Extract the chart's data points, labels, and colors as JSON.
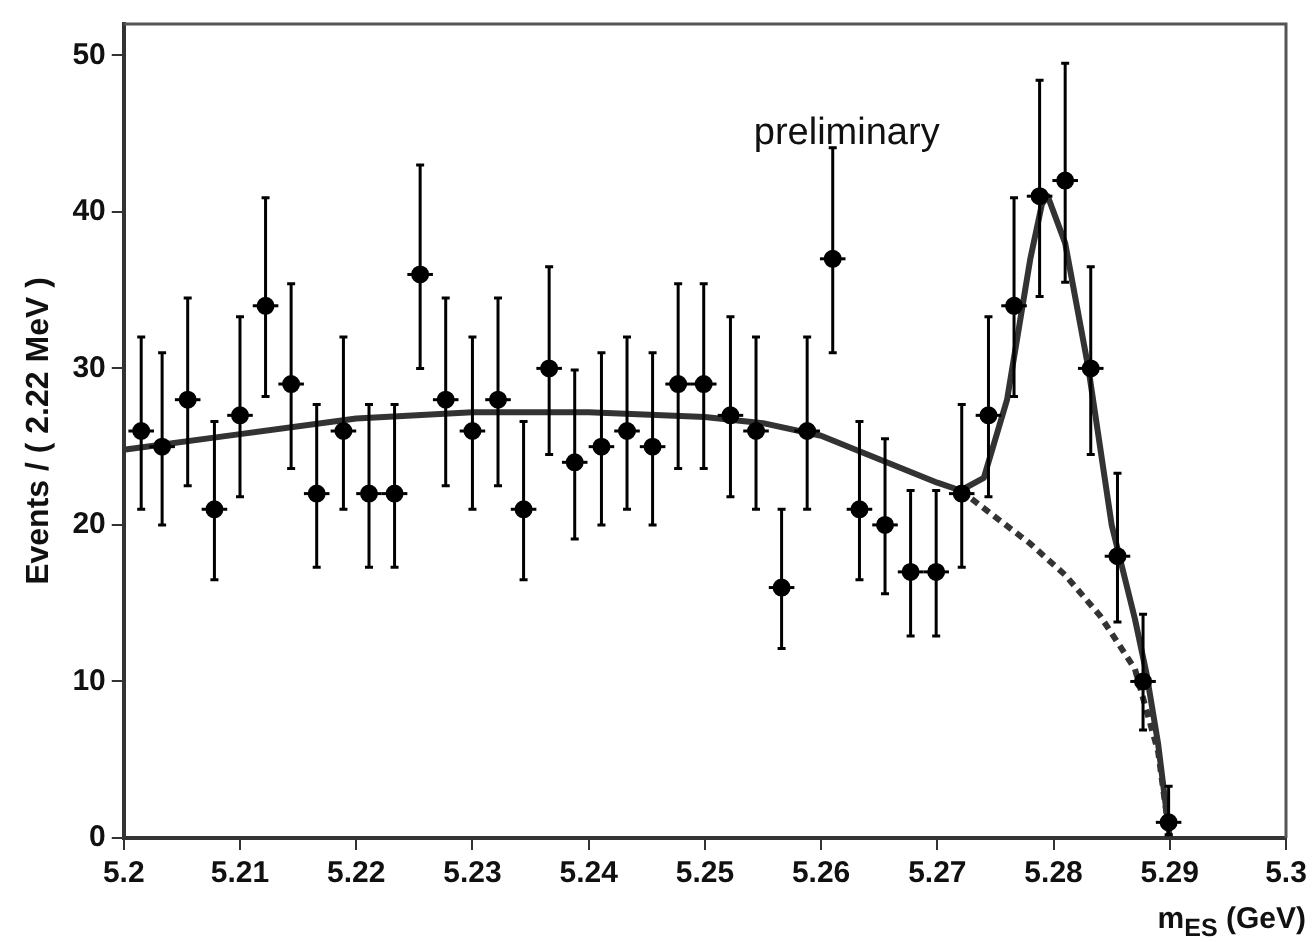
{
  "chart_data": {
    "type": "scatter",
    "xlabel": "m$_{ES}$ (GeV)",
    "ylabel": "Events / ( 2.22 MeV )",
    "annotations": [
      "preliminary"
    ],
    "xlim": [
      5.2,
      5.3
    ],
    "xticks": [
      5.2,
      5.21,
      5.22,
      5.23,
      5.24,
      5.25,
      5.26,
      5.27,
      5.28,
      5.29,
      5.3
    ],
    "ylim": [
      0,
      52
    ],
    "yticks": [
      0,
      10,
      20,
      30,
      40,
      50
    ],
    "grid": false,
    "legend": false,
    "series": [
      {
        "marker": "circle",
        "color": "#000000",
        "x": [
          5.2015,
          5.2033,
          5.2055,
          5.2078,
          5.21,
          5.2122,
          5.2144,
          5.2166,
          5.2189,
          5.2211,
          5.2233,
          5.2255,
          5.2277,
          5.23,
          5.2322,
          5.2344,
          5.2366,
          5.2388,
          5.2411,
          5.2433,
          5.2455,
          5.2477,
          5.2499,
          5.2522,
          5.2544,
          5.2566,
          5.2588,
          5.261,
          5.2633,
          5.2655,
          5.2677,
          5.2699,
          5.2721,
          5.2744,
          5.2766,
          5.2788,
          5.281,
          5.2832,
          5.2855,
          5.2877,
          5.2899
        ],
        "values": [
          26,
          25,
          28,
          21,
          27,
          34,
          29,
          22,
          26,
          22,
          22,
          36,
          28,
          26,
          28,
          21,
          30,
          24,
          25,
          26,
          25,
          29,
          29,
          27,
          26,
          16,
          26,
          37,
          21,
          20,
          17,
          17,
          22,
          27,
          34,
          41,
          42,
          30,
          18,
          10,
          1
        ],
        "errors": [
          [
            21,
            32
          ],
          [
            20,
            31
          ],
          [
            22.5,
            34.5
          ],
          [
            16.5,
            26.6
          ],
          [
            21.8,
            33.3
          ],
          [
            28.2,
            40.9
          ],
          [
            23.6,
            35.4
          ],
          [
            17.3,
            27.7
          ],
          [
            21,
            32
          ],
          [
            17.3,
            27.7
          ],
          [
            17.3,
            27.7
          ],
          [
            30,
            43
          ],
          [
            22.5,
            34.5
          ],
          [
            21,
            32
          ],
          [
            22.5,
            34.5
          ],
          [
            16.5,
            26.6
          ],
          [
            24.5,
            36.5
          ],
          [
            19.1,
            29.9
          ],
          [
            20,
            31
          ],
          [
            21,
            32
          ],
          [
            20,
            31
          ],
          [
            23.6,
            35.4
          ],
          [
            23.6,
            35.4
          ],
          [
            21.8,
            33.3
          ],
          [
            21,
            32
          ],
          [
            12.1,
            21
          ],
          [
            21,
            32
          ],
          [
            31,
            44.1
          ],
          [
            16.5,
            26.6
          ],
          [
            15.6,
            25.5
          ],
          [
            12.9,
            22.2
          ],
          [
            12.9,
            22.2
          ],
          [
            17.3,
            27.7
          ],
          [
            21.8,
            33.3
          ],
          [
            28.2,
            40.9
          ],
          [
            34.6,
            48.4
          ],
          [
            35.5,
            49.5
          ],
          [
            24.5,
            36.5
          ],
          [
            13.8,
            23.3
          ],
          [
            6.9,
            14.3
          ],
          [
            0.2,
            3.3
          ]
        ],
        "xerrors": [
          0.0011,
          0.0011,
          0.0011,
          0.0011,
          0.0011,
          0.0011,
          0.0011,
          0.0011,
          0.0011,
          0.0011,
          0.0011,
          0.0011,
          0.0011,
          0.0011,
          0.0011,
          0.0011,
          0.0011,
          0.0011,
          0.0011,
          0.0011,
          0.0011,
          0.0011,
          0.0011,
          0.0011,
          0.0011,
          0.0011,
          0.0011,
          0.0011,
          0.0011,
          0.0011,
          0.0011,
          0.0011,
          0.0011,
          0.0011,
          0.0011,
          0.0011,
          0.0011,
          0.0011,
          0.0011,
          0.0011,
          0.0011
        ]
      },
      {
        "type": "line",
        "marker": "none",
        "line_style": "solid",
        "color": "#333333",
        "x": [
          5.2,
          5.21,
          5.22,
          5.23,
          5.24,
          5.25,
          5.255,
          5.26,
          5.265,
          5.27,
          5.272,
          5.274,
          5.276,
          5.278,
          5.279,
          5.2795,
          5.281,
          5.283,
          5.285,
          5.287,
          5.288,
          5.289,
          5.2895,
          5.29
        ],
        "values": [
          24.8,
          25.8,
          26.8,
          27.2,
          27.2,
          26.9,
          26.5,
          25.7,
          24.2,
          22.7,
          22.2,
          23,
          28,
          37,
          40.5,
          41,
          38,
          30,
          20,
          14,
          10.5,
          6,
          3,
          0
        ]
      },
      {
        "type": "line",
        "marker": "none",
        "line_style": "dashed",
        "color": "#333333",
        "x": [
          5.272,
          5.275,
          5.278,
          5.281,
          5.284,
          5.287,
          5.289,
          5.29
        ],
        "values": [
          22.2,
          20.5,
          18.8,
          16.8,
          14.2,
          10.8,
          5.5,
          0
        ]
      }
    ]
  }
}
